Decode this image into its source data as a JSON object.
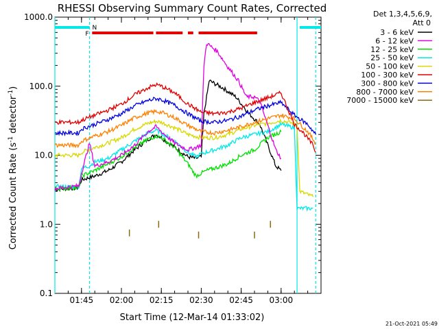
{
  "chart_data": {
    "type": "line",
    "title": "RHESSI Observing Summary Count Rates, Corrected",
    "xlabel": "Start Time (12-Mar-14 01:33:02)",
    "ylabel_main": "Corrected Count Rate (s",
    "ylabel_sup": "-1",
    "ylabel_tail": " detector",
    "ylabel_end": ")",
    "y_scale": "log",
    "ylim": [
      0.1,
      1000
    ],
    "xlim": [
      "01:35",
      "03:15"
    ],
    "x_ticks": [
      "01:45",
      "02:00",
      "02:15",
      "02:30",
      "02:45",
      "03:00"
    ],
    "y_ticks": [
      "0.1",
      "1.0",
      "10.0",
      "100.0",
      "1000.0"
    ],
    "timestamp": "21-Oct-2021 05:49",
    "legend": {
      "header1": "Det 1,3,4,5,6,9,",
      "header2": "Att 0",
      "entries": [
        {
          "label": "3 - 6 keV",
          "color": "#000000"
        },
        {
          "label": "6 - 12 keV",
          "color": "#e000e0"
        },
        {
          "label": "12 - 25 keV",
          "color": "#00e000"
        },
        {
          "label": "25 - 50 keV",
          "color": "#00e8e8"
        },
        {
          "label": "50 - 100 keV",
          "color": "#d8d800"
        },
        {
          "label": "100 - 300 keV",
          "color": "#e00000"
        },
        {
          "label": "300 - 800 keV",
          "color": "#0000e0"
        },
        {
          "label": "800 - 7000 keV",
          "color": "#ff8000"
        },
        {
          "label": "7000 - 15000 keV",
          "color": "#8b6914"
        }
      ]
    },
    "flags": {
      "night_label": "N",
      "flare_label": "F",
      "night_color": "#00e8e8",
      "flare_color": "#e00000",
      "night_bars": [
        [
          "01:35",
          "01:48"
        ],
        [
          "03:07",
          "03:15"
        ]
      ],
      "flare_bars": [
        [
          "01:49",
          "02:12"
        ],
        [
          "02:13",
          "02:23"
        ],
        [
          "02:25",
          "02:27"
        ],
        [
          "02:29",
          "02:51"
        ]
      ]
    },
    "night_lines": [
      "01:35",
      "01:48",
      "03:06",
      "03:13"
    ],
    "series": [
      {
        "name": "3 - 6 keV",
        "color": "#000000",
        "x": [
          "01:35",
          "01:44",
          "01:45",
          "01:50",
          "01:55",
          "02:00",
          "02:05",
          "02:10",
          "02:13",
          "02:15",
          "02:20",
          "02:25",
          "02:28",
          "02:30",
          "02:31",
          "02:33",
          "02:38",
          "02:43",
          "02:48",
          "02:52",
          "02:58",
          "03:00"
        ],
        "y": [
          3.2,
          3.4,
          4.4,
          5.0,
          6.0,
          8.0,
          12.0,
          17.0,
          20.0,
          18.0,
          13.0,
          9.5,
          9.0,
          9.5,
          40,
          120,
          95,
          70,
          40,
          28,
          7,
          6
        ]
      },
      {
        "name": "6 - 12 keV",
        "color": "#e000e0",
        "x": [
          "01:35",
          "01:44",
          "01:45",
          "01:48",
          "01:50",
          "01:55",
          "02:00",
          "02:05",
          "02:10",
          "02:13",
          "02:15",
          "02:20",
          "02:25",
          "02:28",
          "02:30",
          "02:31",
          "02:32",
          "02:36",
          "02:40",
          "02:44",
          "02:47",
          "02:50",
          "02:52",
          "02:58",
          "03:00"
        ],
        "y": [
          3.3,
          3.6,
          5.5,
          15,
          7,
          8,
          10,
          14,
          22,
          26,
          22,
          15,
          12,
          13,
          14,
          200,
          420,
          320,
          190,
          120,
          70,
          70,
          60,
          12,
          9
        ]
      },
      {
        "name": "12 - 25 keV",
        "color": "#00e000",
        "x": [
          "01:35",
          "01:44",
          "01:45",
          "01:50",
          "01:55",
          "02:00",
          "02:05",
          "02:10",
          "02:13",
          "02:15",
          "02:20",
          "02:25",
          "02:28",
          "02:30",
          "02:32",
          "02:35",
          "02:40",
          "02:45",
          "02:50",
          "02:55",
          "03:00"
        ],
        "y": [
          3.3,
          3.4,
          5.0,
          6.0,
          7.5,
          9.5,
          13.0,
          17.0,
          19.0,
          18.0,
          13.0,
          7.5,
          5.0,
          5.5,
          6.0,
          6.5,
          7.5,
          10.0,
          12.0,
          18.0,
          22
        ]
      },
      {
        "name": "25 - 50 keV",
        "color": "#00e8e8",
        "x": [
          "01:35",
          "01:44",
          "01:45",
          "01:48",
          "01:50",
          "01:55",
          "02:00",
          "02:05",
          "02:10",
          "02:13",
          "02:15",
          "02:20",
          "02:25",
          "02:28",
          "02:30",
          "02:35",
          "02:40",
          "02:45",
          "02:50",
          "02:55",
          "03:00",
          "03:05",
          "03:06",
          "03:12"
        ],
        "y": [
          3.5,
          3.5,
          6.5,
          7.0,
          8.0,
          9.0,
          12.0,
          16.0,
          21.0,
          23.0,
          21.0,
          16.0,
          11.0,
          9.5,
          10.5,
          12.0,
          14.0,
          18.0,
          20.0,
          22.0,
          28.0,
          25.0,
          1.7,
          1.7
        ]
      },
      {
        "name": "50 - 100 keV",
        "color": "#d8d800",
        "x": [
          "01:35",
          "01:44",
          "01:45",
          "01:50",
          "01:55",
          "02:00",
          "02:05",
          "02:10",
          "02:13",
          "02:15",
          "02:20",
          "02:25",
          "02:30",
          "02:35",
          "02:40",
          "02:45",
          "02:50",
          "02:55",
          "03:00",
          "03:06",
          "03:07",
          "03:12"
        ],
        "y": [
          10,
          10,
          11,
          13,
          15,
          18,
          24,
          29,
          31,
          30,
          25,
          20,
          18,
          18,
          20,
          24,
          27,
          29,
          32,
          28,
          3,
          2.5
        ]
      },
      {
        "name": "100 - 300 keV",
        "color": "#e00000",
        "x": [
          "01:35",
          "01:44",
          "01:45",
          "01:50",
          "01:55",
          "02:00",
          "02:05",
          "02:10",
          "02:13",
          "02:15",
          "02:20",
          "02:25",
          "02:30",
          "02:35",
          "02:40",
          "02:45",
          "02:50",
          "02:55",
          "03:00",
          "03:05",
          "03:08",
          "03:12",
          "03:13"
        ],
        "y": [
          30,
          30,
          32,
          38,
          45,
          55,
          75,
          95,
          105,
          100,
          80,
          55,
          42,
          40,
          42,
          48,
          58,
          68,
          80,
          28,
          22,
          14,
          11
        ]
      },
      {
        "name": "300 - 800 keV",
        "color": "#0000e0",
        "x": [
          "01:35",
          "01:44",
          "01:45",
          "01:50",
          "01:55",
          "02:00",
          "02:05",
          "02:10",
          "02:13",
          "02:15",
          "02:20",
          "02:25",
          "02:30",
          "02:35",
          "02:40",
          "02:45",
          "02:50",
          "02:55",
          "03:00",
          "03:05",
          "03:10",
          "03:13"
        ],
        "y": [
          21,
          21,
          24,
          28,
          33,
          40,
          52,
          62,
          66,
          64,
          53,
          40,
          31,
          30,
          32,
          37,
          45,
          52,
          58,
          38,
          28,
          20
        ]
      },
      {
        "name": "800 - 7000 keV",
        "color": "#ff8000",
        "x": [
          "01:35",
          "01:44",
          "01:45",
          "01:50",
          "01:55",
          "02:00",
          "02:05",
          "02:10",
          "02:13",
          "02:15",
          "02:20",
          "02:25",
          "02:30",
          "02:35",
          "02:40",
          "02:45",
          "02:50",
          "02:55",
          "03:00",
          "03:05",
          "03:10",
          "03:13"
        ],
        "y": [
          14,
          14,
          16,
          19,
          22,
          27,
          35,
          41,
          43,
          42,
          35,
          27,
          22,
          21,
          23,
          26,
          30,
          34,
          38,
          34,
          22,
          15
        ]
      },
      {
        "name": "7000 - 15000 keV",
        "color": "#8b6914",
        "x": [
          "02:03",
          "02:14",
          "02:29",
          "02:50",
          "02:56"
        ],
        "y": [
          0.75,
          1.0,
          0.7,
          0.7,
          1.0
        ]
      }
    ]
  }
}
